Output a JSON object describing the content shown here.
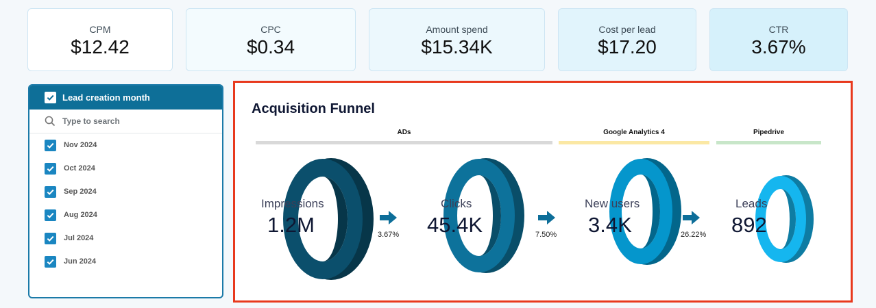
{
  "kpis": [
    {
      "label": "CPM",
      "value": "$12.42"
    },
    {
      "label": "CPC",
      "value": "$0.34"
    },
    {
      "label": "Amount spend",
      "value": "$15.34K"
    },
    {
      "label": "Cost per lead",
      "value": "$17.20"
    },
    {
      "label": "CTR",
      "value": "3.67%"
    }
  ],
  "filter": {
    "title": "Lead creation month",
    "search_placeholder": "Type to search",
    "items": [
      "Nov 2024",
      "Oct 2024",
      "Sep 2024",
      "Aug 2024",
      "Jul 2024",
      "Jun 2024"
    ]
  },
  "funnel": {
    "title": "Acquisition Funnel",
    "segments": [
      {
        "label": "ADs",
        "color": "#d9d9d9"
      },
      {
        "label": "Google Analytics 4",
        "color": "#fbe8a4"
      },
      {
        "label": "Pipedrive",
        "color": "#c8e6c9"
      }
    ],
    "stages": [
      {
        "label": "Impressions",
        "value": "1.2M",
        "color": "#0b4f6c"
      },
      {
        "label": "Clicks",
        "value": "45.4K",
        "color": "#0d729b"
      },
      {
        "label": "New users",
        "value": "3.4K",
        "color": "#0596cc"
      },
      {
        "label": "Leads",
        "value": "892",
        "color": "#15b6ef"
      }
    ],
    "conversions": [
      "3.67%",
      "7.50%",
      "26.22%"
    ],
    "arrow_color": "#0d6e99"
  }
}
